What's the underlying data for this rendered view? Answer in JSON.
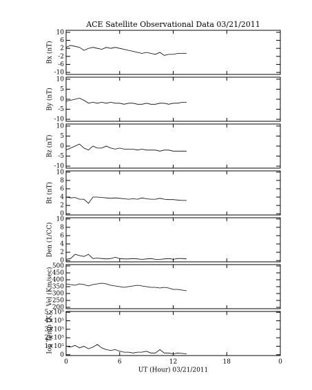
{
  "chart_data": [
    {
      "type": "line",
      "title": "ACE Satellite Observational Data  03/21/2011",
      "ylabel": "Bx (nT)",
      "color": "#000000",
      "xlim": [
        0,
        24
      ],
      "xticks": [
        0,
        6,
        12,
        18,
        {
          "value": 24,
          "label": "0"
        }
      ],
      "ylim": [
        -11,
        11
      ],
      "yticks": [
        10,
        6,
        2,
        -2,
        -6,
        -10
      ],
      "x": [
        0,
        0.5,
        1,
        1.5,
        2,
        2.5,
        3,
        3.5,
        4,
        4.5,
        5,
        5.5,
        6,
        6.5,
        7,
        7.5,
        8,
        8.5,
        9,
        9.5,
        10,
        10.5,
        11,
        11.5,
        12,
        12.5,
        13,
        13.5
      ],
      "values": [
        2.5,
        3.5,
        3,
        2.5,
        1,
        2,
        2.5,
        2,
        1.5,
        2.5,
        2,
        2.5,
        2,
        1.5,
        1,
        0.5,
        0,
        -0.5,
        0,
        -0.5,
        -1,
        0,
        -1.5,
        -1,
        -1,
        -0.5,
        -0.5,
        -0.5
      ]
    },
    {
      "type": "line",
      "ylabel": "By (nT)",
      "color": "#000000",
      "xlim": [
        0,
        24
      ],
      "xticks": [
        0,
        6,
        12,
        18,
        {
          "value": 24,
          "label": "0"
        }
      ],
      "ylim": [
        -11,
        11
      ],
      "yticks": [
        10,
        5,
        0,
        -5,
        -10
      ],
      "x": [
        0,
        0.5,
        1,
        1.5,
        2,
        2.5,
        3,
        3.5,
        4,
        4.5,
        5,
        5.5,
        6,
        6.5,
        7,
        7.5,
        8,
        8.5,
        9,
        9.5,
        10,
        10.5,
        11,
        11.5,
        12,
        12.5,
        13,
        13.5
      ],
      "values": [
        -1,
        -0.5,
        0,
        0.5,
        -0.5,
        -2,
        -1.5,
        -2,
        -1.5,
        -2,
        -1.5,
        -2,
        -2,
        -2.5,
        -2,
        -2,
        -2.5,
        -2.5,
        -2,
        -2.5,
        -2.5,
        -2,
        -2,
        -2.5,
        -2,
        -2,
        -1.5,
        -1.5
      ]
    },
    {
      "type": "line",
      "ylabel": "Bz (nT)",
      "color": "#000000",
      "xlim": [
        0,
        24
      ],
      "xticks": [
        0,
        6,
        12,
        18,
        {
          "value": 24,
          "label": "0"
        }
      ],
      "ylim": [
        -11,
        11
      ],
      "yticks": [
        10,
        5,
        0,
        -5,
        -10
      ],
      "x": [
        0,
        0.5,
        1,
        1.5,
        2,
        2.5,
        3,
        3.5,
        4,
        4.5,
        5,
        5.5,
        6,
        6.5,
        7,
        7.5,
        8,
        8.5,
        9,
        9.5,
        10,
        10.5,
        11,
        11.5,
        12,
        12.5,
        13,
        13.5
      ],
      "values": [
        -2,
        -1,
        0,
        1,
        -1,
        -2,
        0,
        -1,
        -1,
        0,
        -1,
        -1.5,
        -1,
        -1.5,
        -1.5,
        -1.5,
        -2,
        -1.5,
        -2,
        -2,
        -2,
        -2.5,
        -2,
        -2,
        -2.5,
        -2.5,
        -2.5,
        -2.5
      ]
    },
    {
      "type": "line",
      "ylabel": "Bt (nT)",
      "color": "#000000",
      "xlim": [
        0,
        24
      ],
      "xticks": [
        0,
        6,
        12,
        18,
        {
          "value": 24,
          "label": "0"
        }
      ],
      "ylim": [
        -0.3,
        10.3
      ],
      "yticks": [
        10,
        8,
        6,
        4,
        2,
        0
      ],
      "x": [
        0,
        0.5,
        1,
        1.5,
        2,
        2.5,
        3,
        3.5,
        4,
        4.5,
        5,
        5.5,
        6,
        6.5,
        7,
        7.5,
        8,
        8.5,
        9,
        9.5,
        10,
        10.5,
        11,
        11.5,
        12,
        12.5,
        13,
        13.5
      ],
      "values": [
        4,
        3.8,
        3.9,
        3.5,
        3.5,
        2.5,
        4,
        4,
        3.9,
        3.8,
        3.7,
        3.8,
        3.7,
        3.6,
        3.5,
        3.6,
        3.5,
        3.8,
        3.6,
        3.5,
        3.5,
        3.7,
        3.5,
        3.4,
        3.4,
        3.3,
        3.2,
        3.2
      ]
    },
    {
      "type": "line",
      "ylabel": "Den (1/CC)",
      "color": "#000000",
      "xlim": [
        0,
        24
      ],
      "xticks": [
        0,
        6,
        12,
        18,
        {
          "value": 24,
          "label": "0"
        }
      ],
      "ylim": [
        -0.3,
        10.3
      ],
      "yticks": [
        10,
        8,
        6,
        4,
        2,
        0
      ],
      "x": [
        0,
        0.5,
        1,
        1.5,
        2,
        2.5,
        3,
        3.5,
        4,
        4.5,
        5,
        5.5,
        6,
        6.5,
        7,
        7.5,
        8,
        8.5,
        9,
        9.5,
        10,
        10.5,
        11,
        11.5,
        12,
        12.5,
        13,
        13.5
      ],
      "values": [
        0.3,
        0.5,
        1.5,
        1.2,
        1,
        1.5,
        0.5,
        0.6,
        0.5,
        0.4,
        0.5,
        0.8,
        0.5,
        0.4,
        0.4,
        0.5,
        0.4,
        0.3,
        0.4,
        0.5,
        0.3,
        0.3,
        0.4,
        0.5,
        0.3,
        0.5,
        0.5,
        0.4
      ]
    },
    {
      "type": "line",
      "ylabel": "Vel (Km/sec)",
      "color": "#000000",
      "xlim": [
        0,
        24
      ],
      "xticks": [
        0,
        6,
        12,
        18,
        {
          "value": 24,
          "label": "0"
        }
      ],
      "ylim": [
        190,
        510
      ],
      "yticks": [
        500,
        450,
        400,
        350,
        300,
        250,
        200
      ],
      "x": [
        0,
        0.5,
        1,
        1.5,
        2,
        2.5,
        3,
        3.5,
        4,
        4.5,
        5,
        5.5,
        6,
        6.5,
        7,
        7.5,
        8,
        8.5,
        9,
        9.5,
        10,
        10.5,
        11,
        11.5,
        12,
        12.5,
        13,
        13.5
      ],
      "values": [
        370,
        365,
        360,
        370,
        365,
        355,
        365,
        370,
        375,
        370,
        360,
        355,
        350,
        345,
        350,
        355,
        360,
        355,
        350,
        345,
        345,
        340,
        345,
        340,
        330,
        330,
        325,
        320
      ]
    },
    {
      "type": "line",
      "ylabel": "Ion Temp (K)",
      "xlabel": "UT (Hour)  03/21/2011",
      "color": "#000000",
      "xlim": [
        0,
        24
      ],
      "xticks": [
        0,
        6,
        12,
        18,
        {
          "value": 24,
          "label": "0"
        }
      ],
      "ylim": [
        -10000,
        510000
      ],
      "yticks": [
        {
          "value": 500000,
          "label": "5×10⁵"
        },
        {
          "value": 400000,
          "label": "4×10⁵"
        },
        {
          "value": 300000,
          "label": "3×10⁵"
        },
        {
          "value": 200000,
          "label": "2×10⁵"
        },
        {
          "value": 100000,
          "label": "1×10⁵"
        },
        0
      ],
      "x": [
        0,
        0.5,
        1,
        1.5,
        2,
        2.5,
        3,
        3.5,
        4,
        4.5,
        5,
        5.5,
        6,
        6.5,
        7,
        7.5,
        8,
        8.5,
        9,
        9.5,
        10,
        10.5,
        11,
        11.5,
        12,
        12.5,
        13,
        13.5
      ],
      "values": [
        100000,
        90000,
        110000,
        80000,
        100000,
        70000,
        90000,
        120000,
        80000,
        60000,
        50000,
        60000,
        40000,
        30000,
        30000,
        20000,
        30000,
        30000,
        40000,
        20000,
        20000,
        60000,
        20000,
        20000,
        10000,
        20000,
        15000,
        10000
      ]
    }
  ]
}
